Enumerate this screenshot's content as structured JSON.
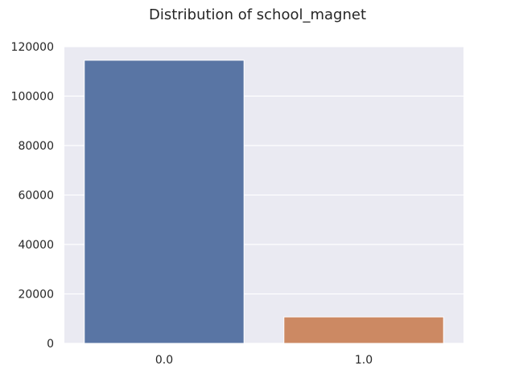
{
  "chart_data": {
    "type": "bar",
    "title": "Distribution of school_magnet",
    "xlabel": "",
    "ylabel": "",
    "categories": [
      "0.0",
      "1.0"
    ],
    "values": [
      114500,
      10700
    ],
    "ylim": [
      0,
      120000
    ],
    "yticks": [
      0,
      20000,
      40000,
      60000,
      80000,
      100000,
      120000
    ],
    "grid": true,
    "colors": [
      "#5975a4",
      "#cc8963"
    ],
    "background": "#eaeaf2",
    "gridcolor": "#ffffff"
  }
}
